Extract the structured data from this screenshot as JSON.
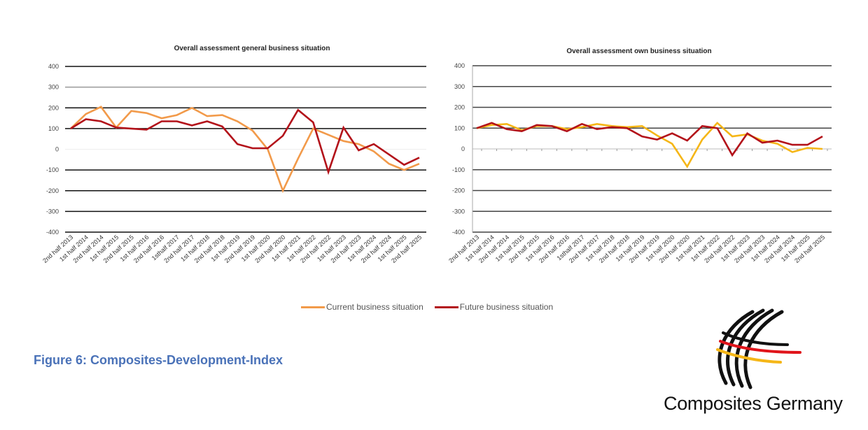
{
  "chart_data": [
    {
      "type": "line",
      "title": "Overall assessment general business situation",
      "categories": [
        "2nd  half 2013",
        "1st half 2014",
        "2nd half 2014",
        "1st half 2015",
        "2nd half 2015",
        "1st half 2016",
        "2nd half 2016",
        "1sthalf 2017",
        "2nd half 2017",
        "1st half 2018",
        "2nd half 2018",
        "1st half 2019",
        "2nd half 2019",
        "1st half 2020",
        "2nd half 2020",
        "1st half 2021",
        "1st half 2022",
        "2nd half 2022",
        "1st half 2023",
        "2nd half 2023",
        "1st half 2024",
        "2nd half 2024",
        "1st half 2025",
        "2nd half 2025"
      ],
      "yticks": [
        "400",
        "300",
        "200",
        "100",
        "0",
        "-100",
        "-200",
        "-300",
        "-400"
      ],
      "ylim": [
        -400,
        400
      ],
      "grid": true,
      "series": [
        {
          "name": "Current business situation",
          "color": "#f29a4a",
          "values": [
            100,
            170,
            205,
            105,
            185,
            175,
            150,
            165,
            200,
            160,
            165,
            135,
            90,
            0,
            -200,
            -45,
            100,
            70,
            40,
            25,
            -10,
            -70,
            -100,
            -70
          ]
        },
        {
          "name": "Future business situation",
          "color": "#b3121a",
          "values": [
            100,
            145,
            135,
            105,
            100,
            95,
            135,
            135,
            115,
            135,
            110,
            25,
            5,
            5,
            65,
            190,
            130,
            -110,
            105,
            -5,
            25,
            -25,
            -75,
            -40
          ]
        }
      ]
    },
    {
      "type": "line",
      "title": "Overall assessment own business situation",
      "categories": [
        "2nd  half 2013",
        "1st half 2014",
        "2nd half 2014",
        "1st half 2015",
        "2nd half 2015",
        "1st half 2016",
        "2nd half 2016",
        "1sthalf 2017",
        "2nd half 2017",
        "1st half 2018",
        "2nd half 2018",
        "1st half 2019",
        "2nd half 2019",
        "1st half 2020",
        "2nd half 2020",
        "1st half 2021",
        "1st half 2022",
        "2nd half 2022",
        "1st half 2023",
        "2nd half 2023",
        "1st half 2024",
        "2nd half 2024",
        "1st half 2025",
        "2nd half 2025"
      ],
      "yticks": [
        "400",
        "300",
        "200",
        "100",
        "0",
        "-100",
        "-200",
        "-300",
        "-400"
      ],
      "ylim": [
        -400,
        400
      ],
      "grid": true,
      "series": [
        {
          "name": "Current business situation",
          "color": "#f5b617",
          "values": [
            100,
            115,
            120,
            90,
            110,
            110,
            95,
            105,
            120,
            110,
            105,
            110,
            65,
            25,
            -85,
            45,
            125,
            60,
            70,
            40,
            25,
            -15,
            5,
            0
          ]
        },
        {
          "name": "Future business situation",
          "color": "#b3121a",
          "values": [
            100,
            125,
            95,
            85,
            115,
            110,
            85,
            120,
            95,
            105,
            100,
            60,
            45,
            75,
            40,
            110,
            100,
            -30,
            75,
            30,
            40,
            20,
            20,
            60
          ]
        }
      ]
    }
  ],
  "legend": {
    "placement": "bottom-center",
    "items": [
      {
        "label": "Current business situation",
        "color": "#f29a4a"
      },
      {
        "label": "Future business situation",
        "color": "#b3121a"
      }
    ]
  },
  "caption": "Figure 6: Composites-Development-Index",
  "logo": {
    "text": "Composites Germany"
  }
}
